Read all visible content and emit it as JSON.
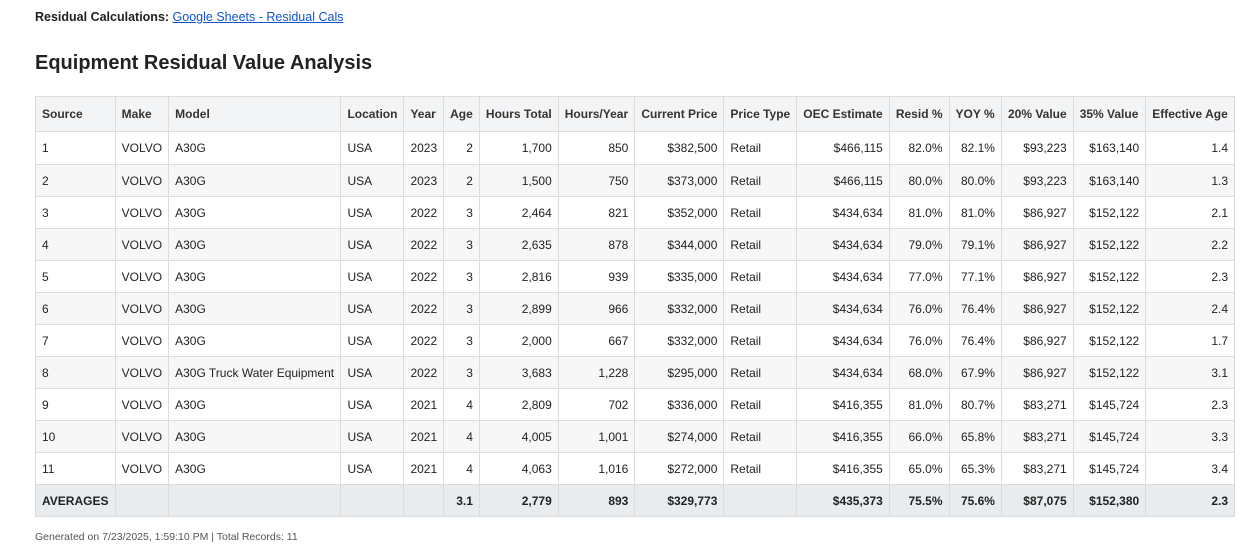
{
  "header": {
    "label": "Residual Calculations:",
    "link_text": "Google Sheets - Residual Cals"
  },
  "title": "Equipment Residual Value Analysis",
  "table": {
    "columns": [
      "Source",
      "Make",
      "Model",
      "Location",
      "Year",
      "Age",
      "Hours Total",
      "Hours/Year",
      "Current Price",
      "Price Type",
      "OEC Estimate",
      "Resid %",
      "YOY %",
      "20% Value",
      "35% Value",
      "Effective Age"
    ],
    "rows": [
      [
        "1",
        "VOLVO",
        "A30G",
        "USA",
        "2023",
        "2",
        "1,700",
        "850",
        "$382,500",
        "Retail",
        "$466,115",
        "82.0%",
        "82.1%",
        "$93,223",
        "$163,140",
        "1.4"
      ],
      [
        "2",
        "VOLVO",
        "A30G",
        "USA",
        "2023",
        "2",
        "1,500",
        "750",
        "$373,000",
        "Retail",
        "$466,115",
        "80.0%",
        "80.0%",
        "$93,223",
        "$163,140",
        "1.3"
      ],
      [
        "3",
        "VOLVO",
        "A30G",
        "USA",
        "2022",
        "3",
        "2,464",
        "821",
        "$352,000",
        "Retail",
        "$434,634",
        "81.0%",
        "81.0%",
        "$86,927",
        "$152,122",
        "2.1"
      ],
      [
        "4",
        "VOLVO",
        "A30G",
        "USA",
        "2022",
        "3",
        "2,635",
        "878",
        "$344,000",
        "Retail",
        "$434,634",
        "79.0%",
        "79.1%",
        "$86,927",
        "$152,122",
        "2.2"
      ],
      [
        "5",
        "VOLVO",
        "A30G",
        "USA",
        "2022",
        "3",
        "2,816",
        "939",
        "$335,000",
        "Retail",
        "$434,634",
        "77.0%",
        "77.1%",
        "$86,927",
        "$152,122",
        "2.3"
      ],
      [
        "6",
        "VOLVO",
        "A30G",
        "USA",
        "2022",
        "3",
        "2,899",
        "966",
        "$332,000",
        "Retail",
        "$434,634",
        "76.0%",
        "76.4%",
        "$86,927",
        "$152,122",
        "2.4"
      ],
      [
        "7",
        "VOLVO",
        "A30G",
        "USA",
        "2022",
        "3",
        "2,000",
        "667",
        "$332,000",
        "Retail",
        "$434,634",
        "76.0%",
        "76.4%",
        "$86,927",
        "$152,122",
        "1.7"
      ],
      [
        "8",
        "VOLVO",
        "A30G Truck Water Equipment",
        "USA",
        "2022",
        "3",
        "3,683",
        "1,228",
        "$295,000",
        "Retail",
        "$434,634",
        "68.0%",
        "67.9%",
        "$86,927",
        "$152,122",
        "3.1"
      ],
      [
        "9",
        "VOLVO",
        "A30G",
        "USA",
        "2021",
        "4",
        "2,809",
        "702",
        "$336,000",
        "Retail",
        "$416,355",
        "81.0%",
        "80.7%",
        "$83,271",
        "$145,724",
        "2.3"
      ],
      [
        "10",
        "VOLVO",
        "A30G",
        "USA",
        "2021",
        "4",
        "4,005",
        "1,001",
        "$274,000",
        "Retail",
        "$416,355",
        "66.0%",
        "65.8%",
        "$83,271",
        "$145,724",
        "3.3"
      ],
      [
        "11",
        "VOLVO",
        "A30G",
        "USA",
        "2021",
        "4",
        "4,063",
        "1,016",
        "$272,000",
        "Retail",
        "$416,355",
        "65.0%",
        "65.3%",
        "$83,271",
        "$145,724",
        "3.4"
      ]
    ],
    "averages": [
      "AVERAGES",
      "",
      "",
      "",
      "",
      "3.1",
      "2,779",
      "893",
      "$329,773",
      "",
      "$435,373",
      "75.5%",
      "75.6%",
      "$87,075",
      "$152,380",
      "2.3"
    ]
  },
  "footer": "Generated on 7/23/2025, 1:59:10 PM | Total Records: 11",
  "colors": {
    "link": "#1155cc",
    "header_bg": "#f3f4f6",
    "averages_bg": "#e9ecef",
    "border": "#dcdcdc"
  }
}
